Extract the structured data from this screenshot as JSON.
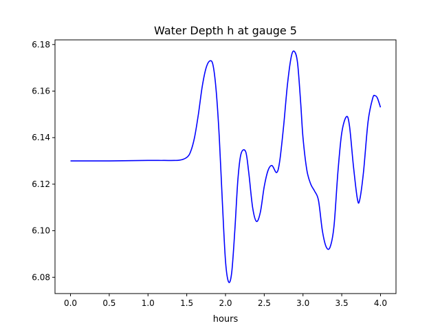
{
  "colors": {
    "line": "#0000ff",
    "axes": "#000000",
    "background": "#ffffff"
  },
  "chart_data": {
    "type": "line",
    "title": "Water Depth h at gauge 5",
    "xlabel": "hours",
    "ylabel": "",
    "xlim": [
      -0.2,
      4.2
    ],
    "ylim": [
      6.073,
      6.182
    ],
    "grid": false,
    "legend": "none",
    "xticks": [
      0.0,
      0.5,
      1.0,
      1.5,
      2.0,
      2.5,
      3.0,
      3.5,
      4.0
    ],
    "xtick_labels": [
      "0.0",
      "0.5",
      "1.0",
      "1.5",
      "2.0",
      "2.5",
      "3.0",
      "3.5",
      "4.0"
    ],
    "yticks": [
      6.08,
      6.1,
      6.12,
      6.14,
      6.16,
      6.18
    ],
    "ytick_labels": [
      "6.08",
      "6.10",
      "6.12",
      "6.14",
      "6.16",
      "6.18"
    ],
    "series": [
      {
        "x": [
          0.0,
          0.5,
          1.0,
          1.2,
          1.4,
          1.5,
          1.55,
          1.6,
          1.65,
          1.7,
          1.75,
          1.8,
          1.84,
          1.88,
          1.92,
          1.96,
          2.0,
          2.04,
          2.08,
          2.12,
          2.16,
          2.2,
          2.26,
          2.3,
          2.35,
          2.4,
          2.45,
          2.5,
          2.55,
          2.6,
          2.66,
          2.7,
          2.75,
          2.8,
          2.85,
          2.89,
          2.93,
          2.97,
          3.0,
          3.05,
          3.1,
          3.15,
          3.2,
          3.25,
          3.3,
          3.35,
          3.4,
          3.45,
          3.5,
          3.56,
          3.6,
          3.65,
          3.7,
          3.73,
          3.78,
          3.84,
          3.9,
          3.93,
          3.96,
          4.0
        ],
        "y": [
          6.13,
          6.13,
          6.1302,
          6.1302,
          6.1303,
          6.1315,
          6.134,
          6.14,
          6.15,
          6.162,
          6.17,
          6.173,
          6.171,
          6.16,
          6.14,
          6.112,
          6.087,
          6.078,
          6.082,
          6.1,
          6.122,
          6.133,
          6.134,
          6.125,
          6.11,
          6.104,
          6.108,
          6.119,
          6.126,
          6.128,
          6.125,
          6.13,
          6.145,
          6.163,
          6.175,
          6.177,
          6.172,
          6.155,
          6.14,
          6.126,
          6.12,
          6.117,
          6.113,
          6.1,
          6.093,
          6.093,
          6.102,
          6.125,
          6.142,
          6.149,
          6.145,
          6.128,
          6.114,
          6.113,
          6.125,
          6.147,
          6.157,
          6.158,
          6.157,
          6.153
        ]
      }
    ]
  }
}
